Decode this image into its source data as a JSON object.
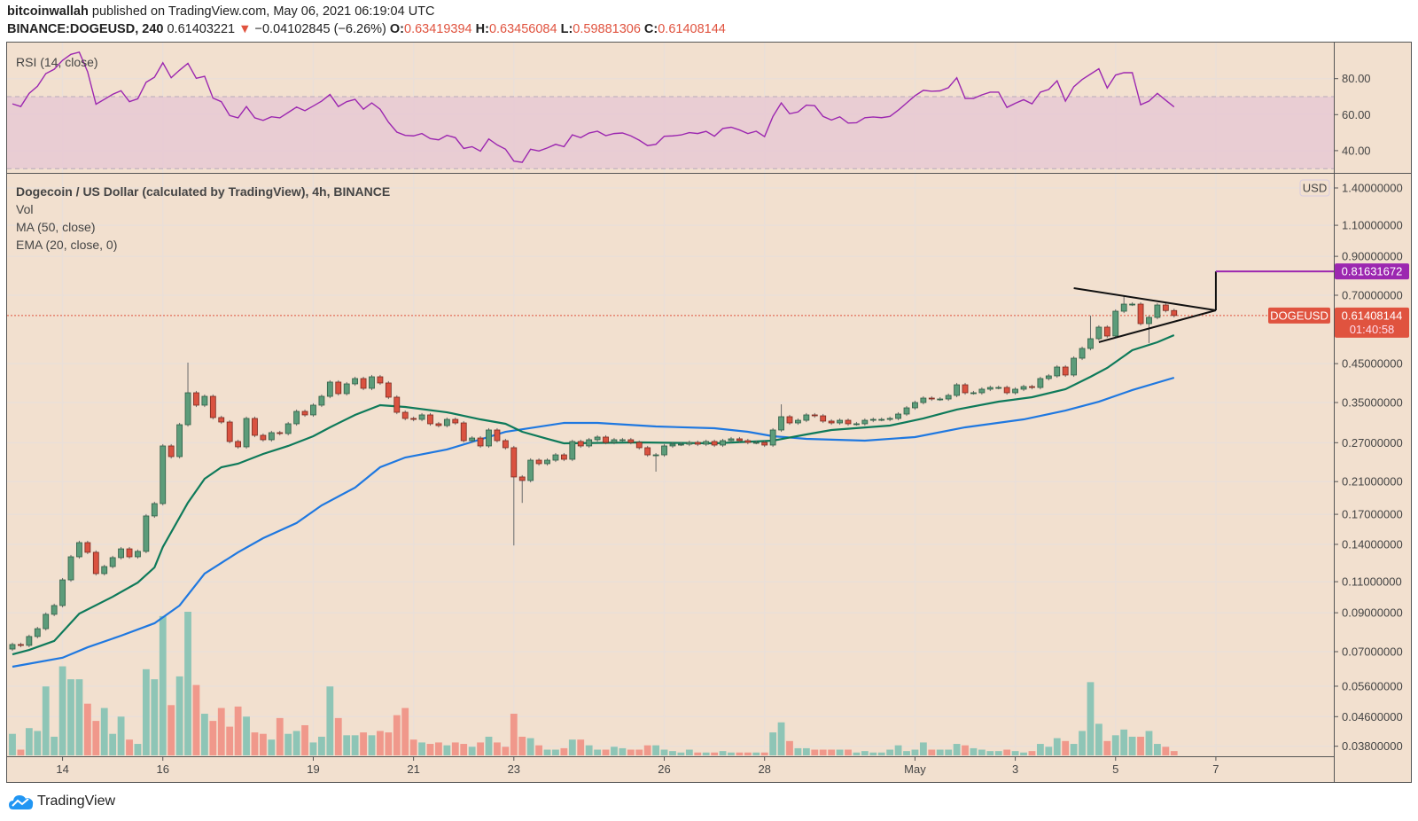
{
  "header": {
    "publisher": "bitcoinwallah",
    "published_text": "published on TradingView.com, May 06, 2021 06:19:04 UTC",
    "symbol": "BINANCE:DOGEUSD, 240",
    "last": "0.61403221",
    "arrow": "▼",
    "change": "−0.04102845 (−6.26%)",
    "o_label": "O:",
    "o": "0.63419394",
    "h_label": "H:",
    "h": "0.63456084",
    "l_label": "L:",
    "l": "0.59881306",
    "c_label": "C:",
    "c": "0.61408144"
  },
  "legend": {
    "rsi": "RSI (14, close)",
    "title": "Dogecoin / US Dollar (calculated by TradingView), 4h, BINANCE",
    "vol": "Vol",
    "ma": "MA (50, close)",
    "ema": "EMA (20, close, 0)"
  },
  "price_scale": {
    "currency": "USD",
    "target_label": "0.81631672",
    "symbol_label": "DOGEUSD",
    "last_label": "0.61408144",
    "countdown": "01:40:58"
  },
  "branding": {
    "name": "TradingView"
  },
  "colors": {
    "background": "#f2e0cf",
    "grid": "#eadfd8",
    "up": "#5c9c7a",
    "up_border": "#2e5e45",
    "down": "#da5240",
    "down_border": "#7a2a20",
    "vol_up": "#8ec5b6",
    "vol_down": "#f0988b",
    "ema": "#0e7a5a",
    "ma": "#1f78e0",
    "rsi": "#9c27b0",
    "rsi_band": "#e8c9d4",
    "target": "#9c27b0",
    "price_line": "#e0533f"
  },
  "chart_data": {
    "type": "candlestick",
    "interval": "4h",
    "y_scale": "log",
    "grid": true,
    "first_open": 0.0712,
    "close": [
      0.0733,
      0.0729,
      0.0772,
      0.0812,
      0.0891,
      0.0943,
      0.1113,
      0.1292,
      0.1416,
      0.133,
      0.1159,
      0.1213,
      0.1285,
      0.136,
      0.1292,
      0.1338,
      0.1682,
      0.1822,
      0.2644,
      0.2468,
      0.3033,
      0.3728,
      0.3441,
      0.3643,
      0.3176,
      0.3086,
      0.2721,
      0.2629,
      0.3158,
      0.2832,
      0.2752,
      0.2881,
      0.2865,
      0.3051,
      0.3305,
      0.3231,
      0.3441,
      0.3643,
      0.3994,
      0.3707,
      0.3948,
      0.4086,
      0.3837,
      0.4133,
      0.3971,
      0.3623,
      0.3286,
      0.3158,
      0.3139,
      0.3231,
      0.3051,
      0.3016,
      0.3139,
      0.3068,
      0.2736,
      0.2783,
      0.2644,
      0.2931,
      0.2736,
      0.2614,
      0.2164,
      0.2115,
      0.2412,
      0.2358,
      0.2412,
      0.2496,
      0.2426,
      0.2721,
      0.2644,
      0.2752,
      0.28,
      0.2705,
      0.2752,
      0.2752,
      0.2705,
      0.2614,
      0.2496,
      0.2496,
      0.2644,
      0.2674,
      0.2674,
      0.2705,
      0.2674,
      0.2721,
      0.2659,
      0.2736,
      0.2768,
      0.2736,
      0.2705,
      0.2705,
      0.2659,
      0.2931,
      0.3194,
      0.3068,
      0.3121,
      0.3231,
      0.3212,
      0.3104,
      0.3068,
      0.3121,
      0.3051,
      0.3051,
      0.3121,
      0.3139,
      0.3139,
      0.3158,
      0.3249,
      0.3382,
      0.35,
      0.3602,
      0.3581,
      0.3581,
      0.3665,
      0.3925,
      0.3728,
      0.3728,
      0.3815,
      0.3858,
      0.3858,
      0.3728,
      0.3815,
      0.388,
      0.3858,
      0.4086,
      0.4157,
      0.4402,
      0.4181,
      0.4661,
      0.4964,
      0.5287,
      0.5696,
      0.5379,
      0.6314,
      0.661,
      0.661,
      0.5827,
      0.6066,
      0.6572,
      0.6342,
      0.6141
    ],
    "notable_wicks": [
      {
        "candle": 22,
        "high": 0.453
      },
      {
        "candle": 61,
        "low": 0.139
      },
      {
        "candle": 62,
        "low": 0.183
      },
      {
        "candle": 78,
        "low": 0.224
      },
      {
        "candle": 93,
        "high": 0.346
      },
      {
        "candle": 130,
        "high": 0.614
      },
      {
        "candle": 134,
        "high": 0.7
      },
      {
        "candle": 137,
        "low": 0.514
      }
    ],
    "volume_relative": [
      15,
      4,
      19,
      17,
      48,
      13,
      62,
      53,
      53,
      36,
      24,
      33,
      15,
      27,
      11,
      8,
      60,
      53,
      97,
      35,
      55,
      100,
      49,
      29,
      24,
      33,
      20,
      34,
      27,
      16,
      15,
      11,
      26,
      15,
      17,
      21,
      9,
      13,
      48,
      26,
      14,
      14,
      16,
      14,
      17,
      16,
      28,
      33,
      11,
      9,
      8,
      9,
      7,
      9,
      8,
      6,
      9,
      13,
      9,
      6,
      29,
      13,
      12,
      7,
      4,
      4,
      5,
      11,
      11,
      7,
      4,
      4,
      6,
      5,
      4,
      4,
      7,
      7,
      4,
      3,
      2,
      4,
      2,
      2,
      2,
      3,
      2,
      2,
      2,
      2,
      2,
      16,
      23,
      10,
      5,
      5,
      4,
      4,
      4,
      4,
      4,
      2,
      3,
      2,
      2,
      4,
      7,
      3,
      4,
      9,
      4,
      4,
      4,
      8,
      7,
      5,
      4,
      3,
      3,
      4,
      3,
      2,
      3,
      8,
      6,
      12,
      10,
      8,
      17,
      51,
      22,
      10,
      14,
      18,
      13,
      13,
      17,
      8,
      6,
      3
    ],
    "ema20": [
      [
        1,
        0.0688
      ],
      [
        3,
        0.0708
      ],
      [
        6,
        0.075
      ],
      [
        9,
        0.0895
      ],
      [
        13,
        0.0998
      ],
      [
        16,
        0.1094
      ],
      [
        18,
        0.1206
      ],
      [
        19,
        0.1376
      ],
      [
        22,
        0.1833
      ],
      [
        24,
        0.2139
      ],
      [
        26,
        0.2304
      ],
      [
        28,
        0.2358
      ],
      [
        31,
        0.2511
      ],
      [
        34,
        0.2644
      ],
      [
        37,
        0.2816
      ],
      [
        39,
        0.2982
      ],
      [
        42,
        0.3231
      ],
      [
        45,
        0.3441
      ],
      [
        48,
        0.3401
      ],
      [
        53,
        0.3286
      ],
      [
        57,
        0.3139
      ],
      [
        60,
        0.3051
      ],
      [
        62,
        0.2897
      ],
      [
        65,
        0.2768
      ],
      [
        67,
        0.2689
      ],
      [
        76,
        0.2705
      ],
      [
        85,
        0.2689
      ],
      [
        92,
        0.2736
      ],
      [
        96,
        0.2848
      ],
      [
        99,
        0.2931
      ],
      [
        106,
        0.3016
      ],
      [
        110,
        0.3158
      ],
      [
        114,
        0.3344
      ],
      [
        119,
        0.352
      ],
      [
        123,
        0.3623
      ],
      [
        127,
        0.3815
      ],
      [
        130,
        0.4133
      ],
      [
        132,
        0.4377
      ],
      [
        135,
        0.4908
      ],
      [
        138,
        0.5167
      ],
      [
        140,
        0.541
      ]
    ],
    "ma50": [
      [
        1,
        0.0635
      ],
      [
        7,
        0.0673
      ],
      [
        10,
        0.072
      ],
      [
        14,
        0.0776
      ],
      [
        18,
        0.0841
      ],
      [
        21,
        0.0943
      ],
      [
        24,
        0.1159
      ],
      [
        28,
        0.133
      ],
      [
        31,
        0.1457
      ],
      [
        35,
        0.1607
      ],
      [
        38,
        0.1801
      ],
      [
        42,
        0.202
      ],
      [
        45,
        0.2304
      ],
      [
        48,
        0.2454
      ],
      [
        53,
        0.2584
      ],
      [
        60,
        0.2897
      ],
      [
        67,
        0.3068
      ],
      [
        71,
        0.3068
      ],
      [
        78,
        0.2999
      ],
      [
        85,
        0.2964
      ],
      [
        89,
        0.2897
      ],
      [
        92,
        0.2816
      ],
      [
        96,
        0.2768
      ],
      [
        103,
        0.2736
      ],
      [
        109,
        0.28
      ],
      [
        115,
        0.2982
      ],
      [
        122,
        0.3139
      ],
      [
        127,
        0.3324
      ],
      [
        131,
        0.352
      ],
      [
        135,
        0.3793
      ],
      [
        140,
        0.4109
      ]
    ],
    "rsi": [
      66,
      64.5,
      71.8,
      75.8,
      82.8,
      85.2,
      90.2,
      93.5,
      94.7,
      83.8,
      65.8,
      68.5,
      71.3,
      73.3,
      67.2,
      68.8,
      78,
      80.8,
      88.8,
      80.5,
      84.7,
      88.5,
      80.2,
      81.3,
      69.2,
      67.2,
      59.5,
      58.2,
      64.5,
      58.2,
      56.8,
      58.8,
      58.2,
      61.2,
      64.2,
      62.2,
      64.8,
      67.5,
      71.2,
      64.5,
      67.2,
      68.5,
      63,
      66.5,
      63,
      55.8,
      50.3,
      48.5,
      48.2,
      49.5,
      46.7,
      46,
      48.5,
      47.2,
      41.2,
      42.2,
      39.7,
      46.5,
      43.2,
      40.8,
      34.2,
      33.5,
      40.8,
      39.8,
      41.5,
      43.5,
      42.2,
      48.8,
      47.2,
      49.8,
      50.8,
      48.3,
      49.5,
      49.8,
      48.2,
      45.8,
      42.8,
      43.5,
      48,
      48.2,
      48.7,
      50,
      49.5,
      50.7,
      48,
      52.3,
      53,
      51.5,
      49.5,
      50.8,
      47.8,
      59,
      66.5,
      60.5,
      61.5,
      65.3,
      65,
      59,
      57,
      58.8,
      55.3,
      55.5,
      58.3,
      58.7,
      58.3,
      59,
      62.5,
      66.5,
      70.5,
      73.5,
      73,
      73.2,
      75,
      80.5,
      69,
      69,
      71,
      72.5,
      72.5,
      64,
      66.3,
      68.3,
      66,
      72.5,
      74,
      78.8,
      67.5,
      75.5,
      79.5,
      82.5,
      85.5,
      74.8,
      82,
      83.3,
      83.3,
      65.5,
      67.5,
      71.8,
      68,
      64.3
    ],
    "rsi_band": [
      30,
      70
    ],
    "rsi_ticks": [
      {
        "value": 80,
        "label": "80.00"
      },
      {
        "value": 60,
        "label": "60.00"
      },
      {
        "value": 40,
        "label": "40.00"
      }
    ],
    "y_ticks": [
      {
        "value": 1.4,
        "label": "1.40000000"
      },
      {
        "value": 1.1,
        "label": "1.10000000"
      },
      {
        "value": 0.9,
        "label": "0.90000000"
      },
      {
        "value": 0.7,
        "label": "0.70000000"
      },
      {
        "value": 0.45,
        "label": "0.45000000"
      },
      {
        "value": 0.35,
        "label": "0.35000000"
      },
      {
        "value": 0.27,
        "label": "0.27000000"
      },
      {
        "value": 0.21,
        "label": "0.21000000"
      },
      {
        "value": 0.17,
        "label": "0.17000000"
      },
      {
        "value": 0.14,
        "label": "0.14000000"
      },
      {
        "value": 0.11,
        "label": "0.11000000"
      },
      {
        "value": 0.09,
        "label": "0.09000000"
      },
      {
        "value": 0.07,
        "label": "0.07000000"
      },
      {
        "value": 0.056,
        "label": "0.05600000"
      },
      {
        "value": 0.046,
        "label": "0.04600000"
      },
      {
        "value": 0.038,
        "label": "0.03800000"
      }
    ],
    "x_ticks": [
      {
        "label": "14",
        "date": "2021-04-14 00:00"
      },
      {
        "label": "16",
        "date": "2021-04-16 00:00"
      },
      {
        "label": "19",
        "date": "2021-04-19 00:00"
      },
      {
        "label": "21",
        "date": "2021-04-21 00:00"
      },
      {
        "label": "23",
        "date": "2021-04-23 00:00"
      },
      {
        "label": "26",
        "date": "2021-04-26 00:00"
      },
      {
        "label": "28",
        "date": "2021-04-28 00:00"
      },
      {
        "label": "May",
        "date": "2021-05-01 00:00"
      },
      {
        "label": "3",
        "date": "2021-05-03 00:00"
      },
      {
        "label": "5",
        "date": "2021-05-05 00:00"
      },
      {
        "label": "7",
        "date": "2021-05-07 00:00"
      }
    ],
    "drawings": {
      "triangle_upper": [
        {
          "date": "2021-05-04 04:00",
          "price": 0.733
        },
        {
          "date": "2021-05-07 00:00",
          "price": 0.635
        }
      ],
      "triangle_lower": [
        {
          "date": "2021-05-04 16:00",
          "price": 0.517
        },
        {
          "date": "2021-05-07 00:00",
          "price": 0.635
        }
      ],
      "target_price": 0.81631672,
      "last_price": 0.61408144
    }
  }
}
